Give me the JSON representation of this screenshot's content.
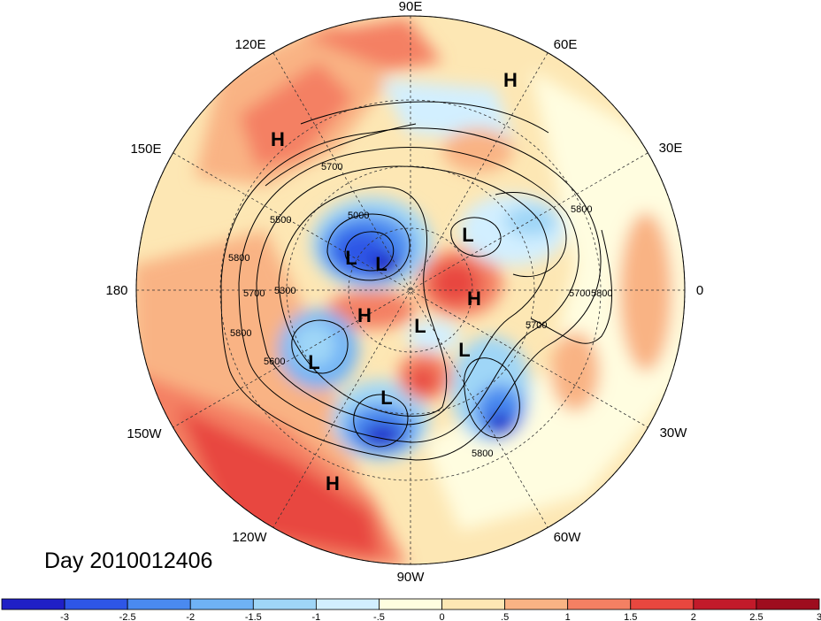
{
  "map": {
    "longitude_labels": {
      "n": "90E",
      "ne": "60E",
      "nne": "30E",
      "e": "0",
      "se": "30W",
      "sse": "60W",
      "s": "90W",
      "ssw": "120W",
      "sw": "150W",
      "w": "180",
      "nw": "150E",
      "nnw": "120E"
    },
    "pressure_centers": [
      {
        "id": "h-siberia",
        "label": "H"
      },
      {
        "id": "h-eurasia",
        "label": "H"
      },
      {
        "id": "l-atlantic-north",
        "label": "L"
      },
      {
        "id": "l-siberia-1",
        "label": "L"
      },
      {
        "id": "l-siberia-2",
        "label": "L"
      },
      {
        "id": "h-arctic-europe",
        "label": "H"
      },
      {
        "id": "h-alaska",
        "label": "H"
      },
      {
        "id": "l-canada-1",
        "label": "L"
      },
      {
        "id": "l-canada-2",
        "label": "L"
      },
      {
        "id": "l-pacific",
        "label": "L"
      },
      {
        "id": "l-hudson",
        "label": "L"
      },
      {
        "id": "h-pacific",
        "label": "H"
      }
    ],
    "contour_labels": [
      "5700",
      "5500",
      "5000",
      "5800",
      "5700",
      "5300",
      "5600",
      "5800",
      "5800",
      "5700",
      "5800",
      "5700",
      "5800"
    ]
  },
  "day_label": "Day 2010012406",
  "colorbar": {
    "colors": [
      "#1f1fc6",
      "#2e56e6",
      "#4a8af0",
      "#6fb2f5",
      "#9fd6f7",
      "#d2efff",
      "#fffde0",
      "#fde7b4",
      "#f9b384",
      "#f48063",
      "#e8473f",
      "#c21a2a",
      "#9e0d1e"
    ],
    "ticks": [
      "-3",
      "-2.5",
      "-2",
      "-1.5",
      "-1",
      "-.5",
      "0",
      ".5",
      "1",
      "1.5",
      "2",
      "2.5",
      "3"
    ]
  }
}
